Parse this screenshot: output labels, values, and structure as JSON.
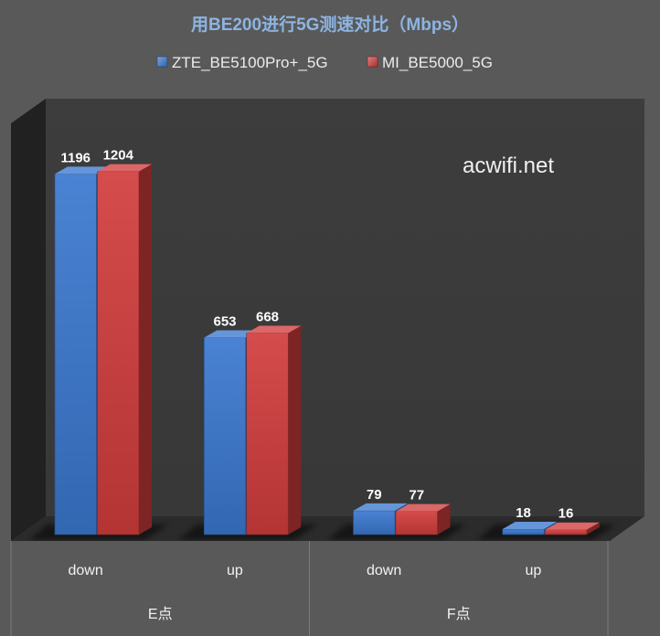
{
  "chart_data": {
    "type": "bar",
    "three_d": true,
    "title": "用BE200进行5G测速对比（Mbps）",
    "categories": [
      "down",
      "up",
      "down",
      "up"
    ],
    "category_groups": [
      {
        "label": "E点",
        "count": 2
      },
      {
        "label": "F点",
        "count": 2
      }
    ],
    "series": [
      {
        "name": "ZTE_BE5100Pro+_5G",
        "color": "#3a78cf",
        "values": [
          1196,
          653,
          79,
          18
        ]
      },
      {
        "name": "MI_BE5000_5G",
        "color": "#d13c3c",
        "values": [
          1204,
          668,
          77,
          16
        ]
      }
    ],
    "ylim": [
      0,
      1400
    ],
    "grid": false,
    "legend": "top",
    "data_labels": true
  },
  "watermark": "acwifi.net"
}
